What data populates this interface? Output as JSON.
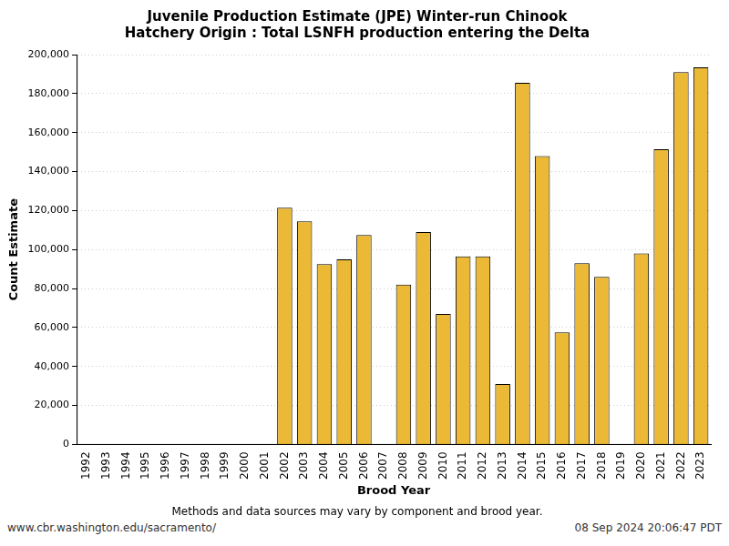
{
  "chart_data": {
    "type": "bar",
    "title": [
      "Juvenile Production Estimate (JPE) Winter-run Chinook",
      "Hatchery Origin : Total LSNFH production entering the Delta"
    ],
    "subtitle": "Methods and data sources may vary by component and brood year.",
    "annotations": [
      "www.cbr.washington.edu/sacramento/",
      "08 Sep 2024 20:06:47 PDT"
    ],
    "x_label": "Brood Year",
    "y_label": "Count Estimate",
    "categories": [
      "1992",
      "1993",
      "1994",
      "1995",
      "1996",
      "1997",
      "1998",
      "1999",
      "2000",
      "2001",
      "2002",
      "2003",
      "2004",
      "2005",
      "2006",
      "2007",
      "2008",
      "2009",
      "2010",
      "2011",
      "2012",
      "2013",
      "2014",
      "2015",
      "2016",
      "2017",
      "2018",
      "2019",
      "2020",
      "2021",
      "2022",
      "2023"
    ],
    "values": [
      null,
      null,
      null,
      null,
      null,
      null,
      null,
      null,
      null,
      null,
      121500,
      114500,
      92500,
      95000,
      107500,
      null,
      82000,
      109000,
      67000,
      96500,
      96500,
      31000,
      185500,
      148000,
      57500,
      93000,
      86000,
      null,
      98000,
      151500,
      191000,
      193500
    ],
    "color": "#ebb935",
    "ylim": [
      0,
      200000
    ],
    "yticks": [
      0,
      {
        "value": 20000,
        "label": "20,000"
      },
      {
        "value": 40000,
        "label": "40,000"
      },
      {
        "value": 60000,
        "label": "60,000"
      },
      {
        "value": 80000,
        "label": "80,000"
      },
      {
        "value": 100000,
        "label": "100,000"
      },
      {
        "value": 120000,
        "label": "120,000"
      },
      {
        "value": 140000,
        "label": "140,000"
      },
      {
        "value": 160000,
        "label": "160,000"
      },
      {
        "value": 180000,
        "label": "180,000"
      },
      {
        "value": 200000,
        "label": "200,000"
      }
    ],
    "grid": true
  }
}
